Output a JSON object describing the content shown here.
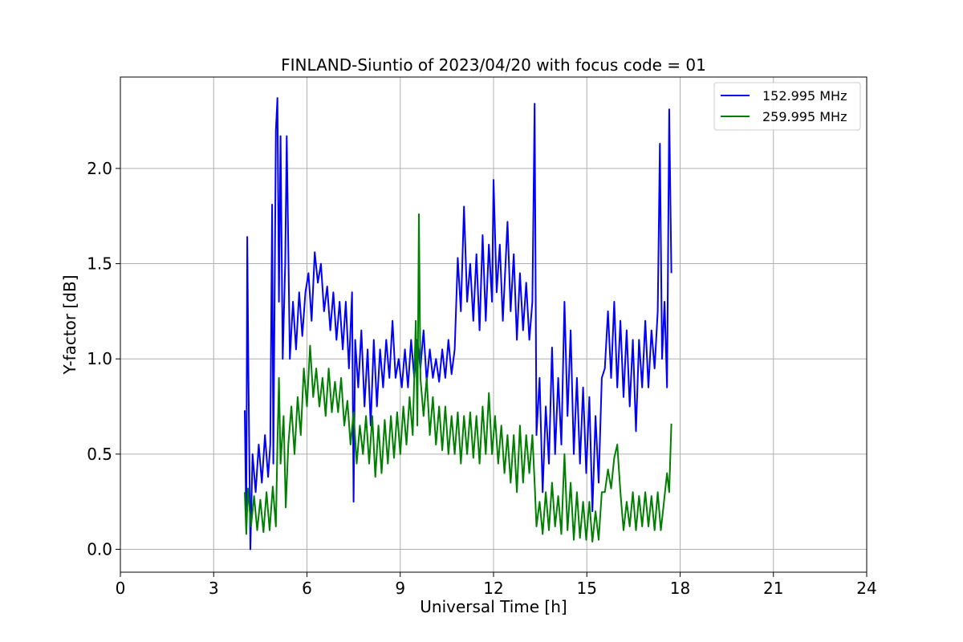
{
  "chart_data": {
    "type": "line",
    "title": "FINLAND-Siuntio of 2023/04/20 with focus code = 01",
    "xlabel": "Universal Time [h]",
    "ylabel": "Y-factor [dB]",
    "xlim": [
      0,
      24
    ],
    "ylim": [
      -0.12,
      2.48
    ],
    "xticks": [
      0,
      3,
      6,
      9,
      12,
      15,
      18,
      21,
      24
    ],
    "xtick_labels": [
      "0",
      "3",
      "6",
      "9",
      "12",
      "15",
      "18",
      "21",
      "24"
    ],
    "yticks": [
      0.0,
      0.5,
      1.0,
      1.5,
      2.0
    ],
    "ytick_labels": [
      "0.0",
      "0.5",
      "1.0",
      "1.5",
      "2.0"
    ],
    "grid": true,
    "legend_position": "top-right",
    "series": [
      {
        "name": "152.995 MHz",
        "color": "#0000ff",
        "points": [
          [
            4.0,
            0.73
          ],
          [
            4.05,
            0.12
          ],
          [
            4.08,
            1.64
          ],
          [
            4.12,
            0.9
          ],
          [
            4.18,
            0.0
          ],
          [
            4.25,
            0.5
          ],
          [
            4.35,
            0.3
          ],
          [
            4.45,
            0.55
          ],
          [
            4.55,
            0.35
          ],
          [
            4.65,
            0.6
          ],
          [
            4.75,
            0.38
          ],
          [
            4.82,
            0.55
          ],
          [
            4.88,
            1.81
          ],
          [
            4.92,
            0.45
          ],
          [
            5.0,
            2.2
          ],
          [
            5.05,
            2.37
          ],
          [
            5.1,
            1.3
          ],
          [
            5.15,
            2.17
          ],
          [
            5.22,
            1.0
          ],
          [
            5.3,
            1.5
          ],
          [
            5.35,
            2.17
          ],
          [
            5.45,
            1.0
          ],
          [
            5.55,
            1.3
          ],
          [
            5.65,
            1.05
          ],
          [
            5.75,
            1.35
          ],
          [
            5.85,
            1.12
          ],
          [
            5.95,
            1.35
          ],
          [
            6.05,
            1.45
          ],
          [
            6.15,
            1.2
          ],
          [
            6.25,
            1.56
          ],
          [
            6.35,
            1.4
          ],
          [
            6.45,
            1.5
          ],
          [
            6.55,
            1.25
          ],
          [
            6.65,
            1.38
          ],
          [
            6.75,
            1.15
          ],
          [
            6.85,
            1.35
          ],
          [
            6.95,
            1.1
          ],
          [
            7.05,
            1.3
          ],
          [
            7.15,
            1.05
          ],
          [
            7.25,
            1.3
          ],
          [
            7.35,
            0.95
          ],
          [
            7.45,
            1.35
          ],
          [
            7.5,
            0.25
          ],
          [
            7.55,
            1.1
          ],
          [
            7.65,
            0.85
          ],
          [
            7.75,
            1.15
          ],
          [
            7.85,
            0.75
          ],
          [
            7.95,
            1.05
          ],
          [
            8.05,
            0.65
          ],
          [
            8.15,
            1.1
          ],
          [
            8.25,
            0.75
          ],
          [
            8.35,
            1.05
          ],
          [
            8.45,
            0.85
          ],
          [
            8.55,
            1.1
          ],
          [
            8.65,
            0.9
          ],
          [
            8.75,
            1.2
          ],
          [
            8.85,
            0.9
          ],
          [
            8.95,
            1.0
          ],
          [
            9.05,
            0.85
          ],
          [
            9.15,
            1.05
          ],
          [
            9.25,
            0.85
          ],
          [
            9.35,
            1.1
          ],
          [
            9.45,
            0.9
          ],
          [
            9.55,
            1.1
          ],
          [
            9.65,
            0.95
          ],
          [
            9.75,
            1.15
          ],
          [
            9.85,
            0.88
          ],
          [
            9.95,
            1.05
          ],
          [
            10.05,
            0.9
          ],
          [
            10.15,
            1.0
          ],
          [
            10.25,
            0.88
          ],
          [
            10.35,
            1.05
          ],
          [
            10.45,
            0.9
          ],
          [
            10.55,
            1.1
          ],
          [
            10.65,
            0.92
          ],
          [
            10.75,
            1.05
          ],
          [
            10.85,
            1.53
          ],
          [
            10.95,
            1.25
          ],
          [
            11.05,
            1.8
          ],
          [
            11.15,
            1.3
          ],
          [
            11.25,
            1.5
          ],
          [
            11.35,
            1.2
          ],
          [
            11.45,
            1.55
          ],
          [
            11.55,
            1.15
          ],
          [
            11.65,
            1.65
          ],
          [
            11.75,
            1.2
          ],
          [
            11.85,
            1.6
          ],
          [
            11.95,
            1.3
          ],
          [
            12.0,
            1.94
          ],
          [
            12.1,
            1.35
          ],
          [
            12.2,
            1.6
          ],
          [
            12.3,
            1.2
          ],
          [
            12.45,
            1.72
          ],
          [
            12.55,
            1.25
          ],
          [
            12.65,
            1.55
          ],
          [
            12.75,
            1.1
          ],
          [
            12.85,
            1.45
          ],
          [
            12.95,
            1.15
          ],
          [
            13.05,
            1.4
          ],
          [
            13.15,
            1.1
          ],
          [
            13.25,
            1.3
          ],
          [
            13.32,
            2.34
          ],
          [
            13.38,
            0.6
          ],
          [
            13.48,
            0.9
          ],
          [
            13.58,
            0.3
          ],
          [
            13.68,
            0.75
          ],
          [
            13.78,
            0.45
          ],
          [
            13.88,
            1.06
          ],
          [
            13.98,
            0.5
          ],
          [
            14.08,
            0.9
          ],
          [
            14.18,
            0.55
          ],
          [
            14.28,
            1.3
          ],
          [
            14.38,
            0.7
          ],
          [
            14.48,
            1.15
          ],
          [
            14.58,
            0.5
          ],
          [
            14.68,
            0.9
          ],
          [
            14.78,
            0.45
          ],
          [
            14.88,
            0.85
          ],
          [
            14.98,
            0.4
          ],
          [
            15.08,
            0.8
          ],
          [
            15.18,
            0.2
          ],
          [
            15.28,
            0.7
          ],
          [
            15.38,
            0.35
          ],
          [
            15.48,
            0.9
          ],
          [
            15.58,
            0.95
          ],
          [
            15.68,
            1.25
          ],
          [
            15.78,
            0.9
          ],
          [
            15.88,
            1.3
          ],
          [
            15.98,
            0.85
          ],
          [
            16.08,
            1.2
          ],
          [
            16.18,
            0.8
          ],
          [
            16.28,
            1.15
          ],
          [
            16.38,
            0.75
          ],
          [
            16.48,
            1.1
          ],
          [
            16.58,
            0.62
          ],
          [
            16.68,
            1.1
          ],
          [
            16.78,
            0.85
          ],
          [
            16.88,
            1.2
          ],
          [
            16.98,
            0.85
          ],
          [
            17.08,
            1.15
          ],
          [
            17.18,
            0.95
          ],
          [
            17.28,
            1.25
          ],
          [
            17.35,
            2.13
          ],
          [
            17.42,
            1.0
          ],
          [
            17.5,
            1.3
          ],
          [
            17.58,
            0.85
          ],
          [
            17.65,
            2.31
          ],
          [
            17.72,
            1.45
          ]
        ]
      },
      {
        "name": "259.995 MHz",
        "color": "#008000",
        "points": [
          [
            4.0,
            0.3
          ],
          [
            4.05,
            0.08
          ],
          [
            4.1,
            0.32
          ],
          [
            4.2,
            0.12
          ],
          [
            4.3,
            0.28
          ],
          [
            4.4,
            0.1
          ],
          [
            4.5,
            0.26
          ],
          [
            4.6,
            0.09
          ],
          [
            4.7,
            0.3
          ],
          [
            4.8,
            0.1
          ],
          [
            4.9,
            0.33
          ],
          [
            5.0,
            0.12
          ],
          [
            5.05,
            0.55
          ],
          [
            5.1,
            0.9
          ],
          [
            5.15,
            0.45
          ],
          [
            5.25,
            0.7
          ],
          [
            5.32,
            0.22
          ],
          [
            5.4,
            0.55
          ],
          [
            5.5,
            0.75
          ],
          [
            5.6,
            0.5
          ],
          [
            5.7,
            0.8
          ],
          [
            5.8,
            0.6
          ],
          [
            5.9,
            0.95
          ],
          [
            6.0,
            0.75
          ],
          [
            6.1,
            1.07
          ],
          [
            6.2,
            0.8
          ],
          [
            6.3,
            0.95
          ],
          [
            6.4,
            0.75
          ],
          [
            6.5,
            0.9
          ],
          [
            6.6,
            0.7
          ],
          [
            6.7,
            0.95
          ],
          [
            6.8,
            0.72
          ],
          [
            6.9,
            0.88
          ],
          [
            7.0,
            0.72
          ],
          [
            7.1,
            0.9
          ],
          [
            7.2,
            0.65
          ],
          [
            7.3,
            0.78
          ],
          [
            7.4,
            0.55
          ],
          [
            7.5,
            0.72
          ],
          [
            7.6,
            0.45
          ],
          [
            7.7,
            0.65
          ],
          [
            7.8,
            0.5
          ],
          [
            7.9,
            0.7
          ],
          [
            8.0,
            0.45
          ],
          [
            8.1,
            0.7
          ],
          [
            8.2,
            0.38
          ],
          [
            8.3,
            0.65
          ],
          [
            8.4,
            0.4
          ],
          [
            8.5,
            0.68
          ],
          [
            8.6,
            0.45
          ],
          [
            8.7,
            0.7
          ],
          [
            8.8,
            0.48
          ],
          [
            8.9,
            0.72
          ],
          [
            9.0,
            0.5
          ],
          [
            9.1,
            0.75
          ],
          [
            9.2,
            0.55
          ],
          [
            9.3,
            0.8
          ],
          [
            9.4,
            0.6
          ],
          [
            9.5,
            1.2
          ],
          [
            9.55,
            0.65
          ],
          [
            9.6,
            1.76
          ],
          [
            9.65,
            0.9
          ],
          [
            9.75,
            0.7
          ],
          [
            9.85,
            0.9
          ],
          [
            9.95,
            0.6
          ],
          [
            10.05,
            0.8
          ],
          [
            10.15,
            0.55
          ],
          [
            10.25,
            0.75
          ],
          [
            10.35,
            0.52
          ],
          [
            10.45,
            0.75
          ],
          [
            10.55,
            0.5
          ],
          [
            10.65,
            0.7
          ],
          [
            10.75,
            0.5
          ],
          [
            10.85,
            0.72
          ],
          [
            10.95,
            0.45
          ],
          [
            11.05,
            0.7
          ],
          [
            11.15,
            0.5
          ],
          [
            11.25,
            0.72
          ],
          [
            11.35,
            0.48
          ],
          [
            11.45,
            0.7
          ],
          [
            11.55,
            0.45
          ],
          [
            11.65,
            0.75
          ],
          [
            11.75,
            0.5
          ],
          [
            11.85,
            0.82
          ],
          [
            11.95,
            0.5
          ],
          [
            12.05,
            0.7
          ],
          [
            12.15,
            0.45
          ],
          [
            12.25,
            0.65
          ],
          [
            12.35,
            0.4
          ],
          [
            12.45,
            0.6
          ],
          [
            12.55,
            0.35
          ],
          [
            12.65,
            0.6
          ],
          [
            12.75,
            0.3
          ],
          [
            12.85,
            0.65
          ],
          [
            12.95,
            0.35
          ],
          [
            13.05,
            0.6
          ],
          [
            13.15,
            0.4
          ],
          [
            13.25,
            0.6
          ],
          [
            13.32,
            0.35
          ],
          [
            13.38,
            0.12
          ],
          [
            13.48,
            0.25
          ],
          [
            13.58,
            0.08
          ],
          [
            13.68,
            0.3
          ],
          [
            13.78,
            0.1
          ],
          [
            13.88,
            0.35
          ],
          [
            13.98,
            0.12
          ],
          [
            14.08,
            0.28
          ],
          [
            14.18,
            0.08
          ],
          [
            14.28,
            0.5
          ],
          [
            14.38,
            0.1
          ],
          [
            14.48,
            0.35
          ],
          [
            14.58,
            0.05
          ],
          [
            14.68,
            0.3
          ],
          [
            14.78,
            0.06
          ],
          [
            14.88,
            0.25
          ],
          [
            14.98,
            0.05
          ],
          [
            15.08,
            0.25
          ],
          [
            15.18,
            0.04
          ],
          [
            15.28,
            0.2
          ],
          [
            15.38,
            0.05
          ],
          [
            15.48,
            0.3
          ],
          [
            15.58,
            0.3
          ],
          [
            15.68,
            0.42
          ],
          [
            15.78,
            0.32
          ],
          [
            15.88,
            0.48
          ],
          [
            15.98,
            0.55
          ],
          [
            16.08,
            0.3
          ],
          [
            16.18,
            0.1
          ],
          [
            16.28,
            0.25
          ],
          [
            16.38,
            0.12
          ],
          [
            16.48,
            0.3
          ],
          [
            16.58,
            0.1
          ],
          [
            16.68,
            0.28
          ],
          [
            16.78,
            0.12
          ],
          [
            16.88,
            0.3
          ],
          [
            16.98,
            0.12
          ],
          [
            17.08,
            0.28
          ],
          [
            17.18,
            0.1
          ],
          [
            17.28,
            0.3
          ],
          [
            17.38,
            0.1
          ],
          [
            17.48,
            0.25
          ],
          [
            17.58,
            0.4
          ],
          [
            17.65,
            0.3
          ],
          [
            17.72,
            0.66
          ]
        ]
      }
    ]
  }
}
